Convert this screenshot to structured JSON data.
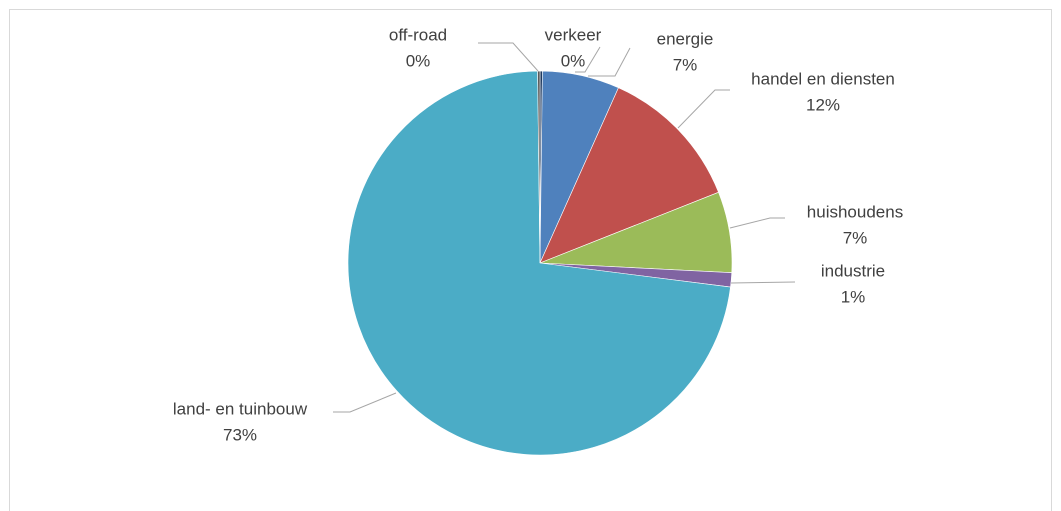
{
  "chart_data": {
    "type": "pie",
    "categories": [
      "verkeer",
      "energie",
      "handel en diensten",
      "huishoudens",
      "industrie",
      "land- en tuinbouw",
      "off-road"
    ],
    "values": [
      0.2,
      6.5,
      12.3,
      6.8,
      1.2,
      72.8,
      0.2
    ],
    "value_labels": [
      "0%",
      "7%",
      "12%",
      "7%",
      "1%",
      "73%",
      "0%"
    ],
    "colors": [
      "#1f3a5f",
      "#4f81bd",
      "#c0504d",
      "#9bbb59",
      "#8064a2",
      "#4bacc6",
      "#595959"
    ]
  }
}
